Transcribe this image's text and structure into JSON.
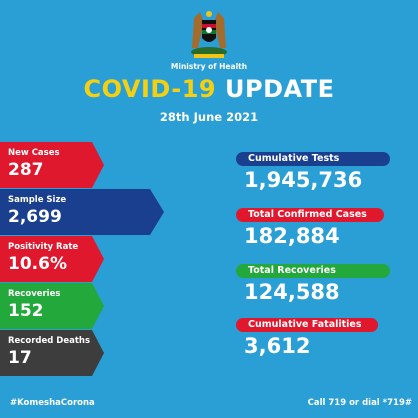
{
  "header": {
    "ministry": "Ministry of Health",
    "title_part1": "COVID-19",
    "title_part2": "UPDATE",
    "date": "28th June 2021"
  },
  "left_stats": [
    {
      "label": "New Cases",
      "value": "287",
      "color": "#e0182d"
    },
    {
      "label": "Sample Size",
      "value": "2,699",
      "color": "#1b3f8f"
    },
    {
      "label": "Positivity Rate",
      "value": "10.6%",
      "color": "#e0182d"
    },
    {
      "label": "Recoveries",
      "value": "152",
      "color": "#23a83c"
    },
    {
      "label": "Recorded Deaths",
      "value": "17",
      "color": "#3d3d3d"
    }
  ],
  "right_stats": [
    {
      "label": "Cumulative Tests",
      "value": "1,945,736",
      "color": "#1b3f8f"
    },
    {
      "label": "Total Confirmed Cases",
      "value": "182,884",
      "color": "#e0182d"
    },
    {
      "label": "Total Recoveries",
      "value": "124,588",
      "color": "#23a83c"
    },
    {
      "label": "Cumulative Fatalities",
      "value": "3,612",
      "color": "#e0182d"
    }
  ],
  "footer": {
    "hashtag": "#KomeshaCorona",
    "call": "Call 719 or dial *719#"
  }
}
